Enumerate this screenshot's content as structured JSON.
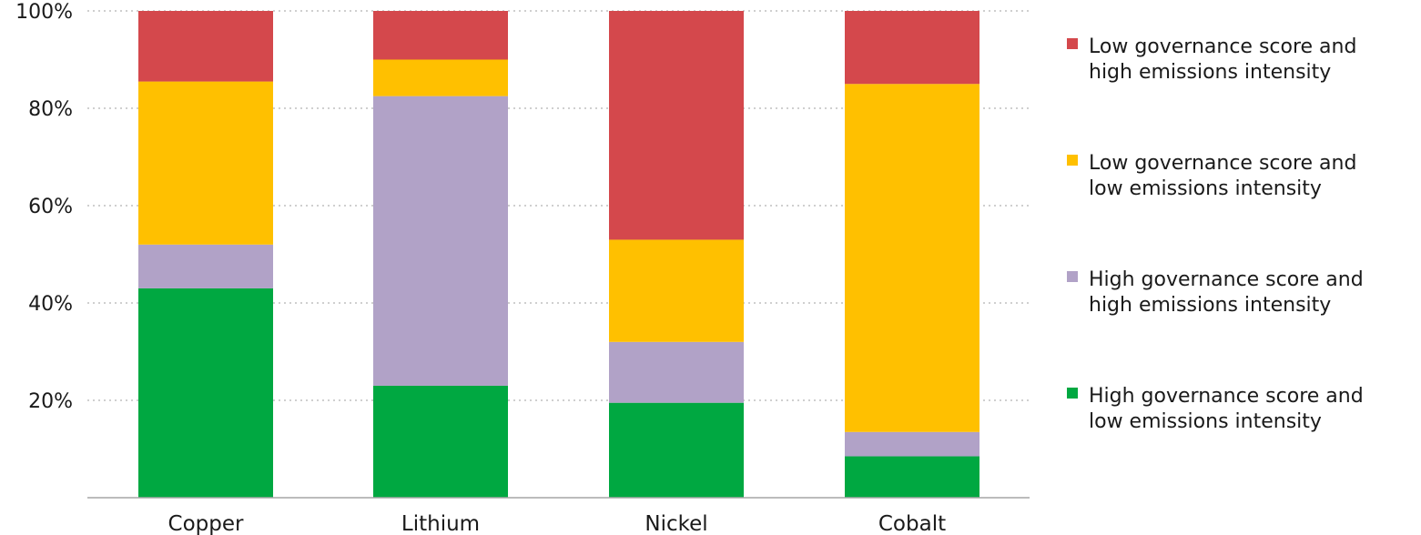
{
  "chart_data": {
    "type": "bar",
    "stacked": true,
    "categories": [
      "Copper",
      "Lithium",
      "Nickel",
      "Cobalt"
    ],
    "ylim": [
      0,
      100
    ],
    "yticks": [
      20,
      40,
      60,
      80,
      100
    ],
    "ytick_labels": [
      "20%",
      "40%",
      "60%",
      "80%",
      "100%"
    ],
    "grid": true,
    "legend_position": "right",
    "series": [
      {
        "name_lines": [
          "High governance score and",
          "low emissions intensity"
        ],
        "color": "#00a841",
        "values": [
          43,
          23,
          19.5,
          8.5
        ]
      },
      {
        "name_lines": [
          "High governance score and",
          "high emissions intensity"
        ],
        "color": "#b1a2c7",
        "values": [
          9,
          59.5,
          12.5,
          5
        ]
      },
      {
        "name_lines": [
          "Low governance score and",
          "low emissions intensity"
        ],
        "color": "#ffc000",
        "values": [
          33.5,
          7.5,
          21,
          71.5
        ]
      },
      {
        "name_lines": [
          "Low governance score and",
          "high emissions intensity"
        ],
        "color": "#d4484c",
        "values": [
          14.5,
          10,
          47,
          15
        ]
      }
    ],
    "legend_order": [
      3,
      2,
      1,
      0
    ]
  }
}
